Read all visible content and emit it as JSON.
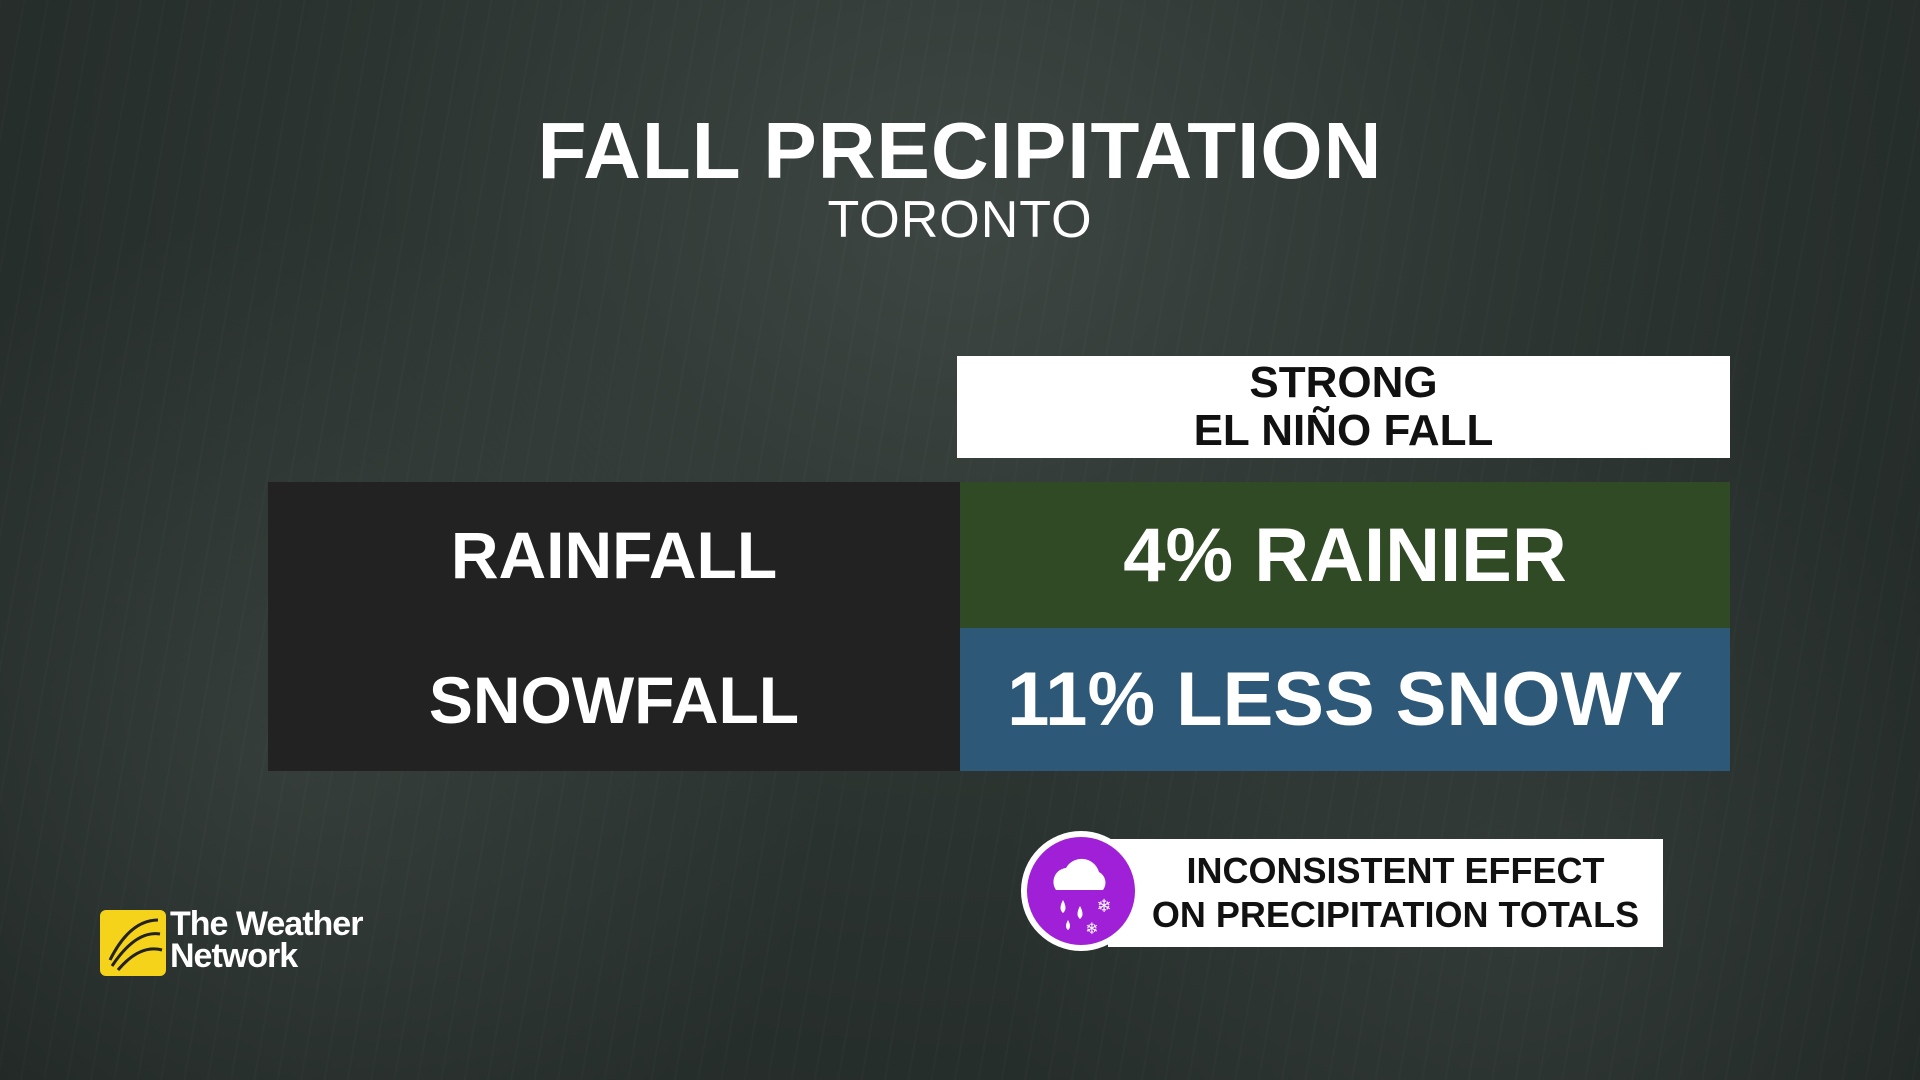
{
  "header": {
    "title": "FALL PRECIPITATION",
    "subtitle": "TORONTO"
  },
  "table": {
    "column_header": [
      "STRONG",
      "EL NIÑO FALL"
    ],
    "rows": [
      [
        "RAINFALL",
        "4% RAINIER"
      ],
      [
        "SNOWFALL",
        "11% LESS SNOWY"
      ]
    ]
  },
  "note": [
    "INCONSISTENT EFFECT",
    "ON PRECIPITATION TOTALS"
  ],
  "logo": [
    "The Weather",
    "Network"
  ]
}
